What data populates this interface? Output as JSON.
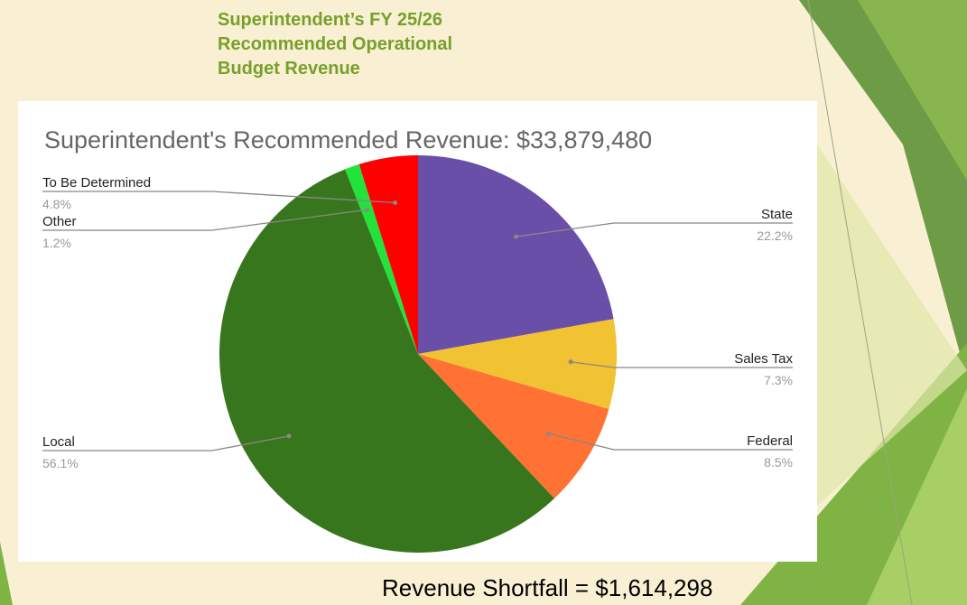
{
  "slide": {
    "title_lines": [
      "Superintendent’s FY 25/26",
      "Recommended Operational",
      "Budget Revenue"
    ],
    "footer": "Revenue Shortfall = $1,614,298"
  },
  "colors": {
    "background": "#f9f0d3",
    "title": "#77a02b",
    "chart_title": "#666666",
    "label_name": "#222222",
    "label_pct": "#999999",
    "leader_line": "#888888"
  },
  "chart_data": {
    "type": "pie",
    "title": "Superintendent's Recommended Revenue:  $33,879,480",
    "start": "12 o'clock",
    "direction": "clockwise",
    "labels": "outside, with leader lines",
    "slices": [
      {
        "name": "State",
        "percent": 22.2,
        "label": "22.2%",
        "color": "#6a4fa8"
      },
      {
        "name": "Sales Tax",
        "percent": 7.3,
        "label": "7.3%",
        "color": "#f1c232"
      },
      {
        "name": "Federal",
        "percent": 8.5,
        "label": "8.5%",
        "color": "#ff7233"
      },
      {
        "name": "Local",
        "percent": 56.1,
        "label": "56.1%",
        "color": "#38761d"
      },
      {
        "name": "Other",
        "percent": 1.2,
        "label": "1.2%",
        "color": "#22e33a"
      },
      {
        "name": "To Be Determined",
        "percent": 4.8,
        "label": "4.8%",
        "color": "#ff0000"
      }
    ]
  }
}
